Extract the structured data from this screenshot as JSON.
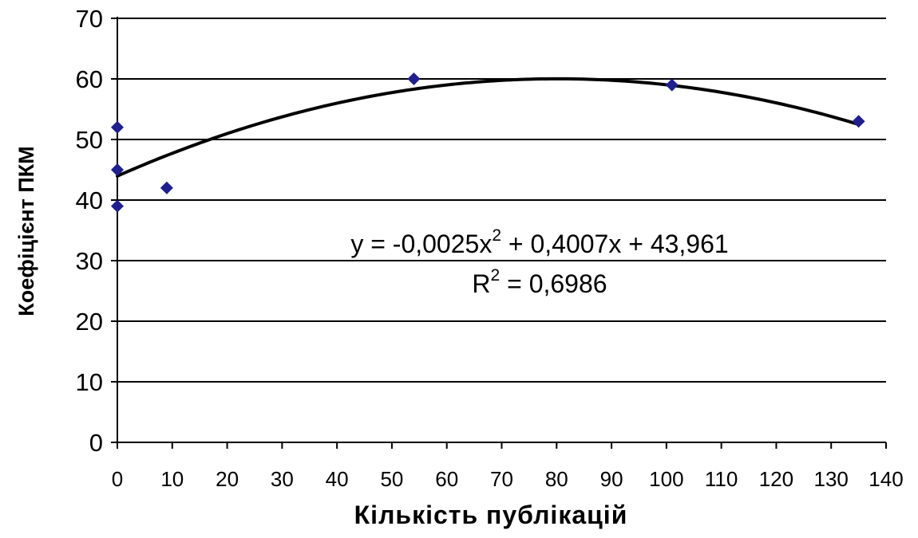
{
  "chart_data": {
    "type": "scatter",
    "xlabel": "Кількість публікацій",
    "ylabel": "Коефіцієнт ПКМ",
    "xlim": [
      0,
      140
    ],
    "ylim": [
      0,
      70
    ],
    "xticks": [
      0,
      10,
      20,
      30,
      40,
      50,
      60,
      70,
      80,
      90,
      100,
      110,
      120,
      130,
      140
    ],
    "yticks": [
      0,
      10,
      20,
      30,
      40,
      50,
      60,
      70
    ],
    "grid": "horizontal",
    "marker_color": "#1f1f8f",
    "trendline_color": "#000000",
    "series": [
      {
        "points": [
          {
            "x": 0,
            "y": 52
          },
          {
            "x": 0,
            "y": 45
          },
          {
            "x": 0,
            "y": 39
          },
          {
            "x": 9,
            "y": 42
          },
          {
            "x": 54,
            "y": 60
          },
          {
            "x": 101,
            "y": 59
          },
          {
            "x": 135,
            "y": 53
          }
        ]
      }
    ],
    "trendline": {
      "type": "polynomial",
      "order": 2,
      "coefficients": {
        "a": -0.0025,
        "b": 0.4007,
        "c": 43.961
      },
      "equation": {
        "prefix": "y = -0,0025x",
        "power": "2",
        "suffix": " + 0,4007x + 43,961"
      },
      "r_squared": {
        "prefix": "R",
        "power": "2",
        "suffix": " = 0,6986"
      }
    }
  }
}
